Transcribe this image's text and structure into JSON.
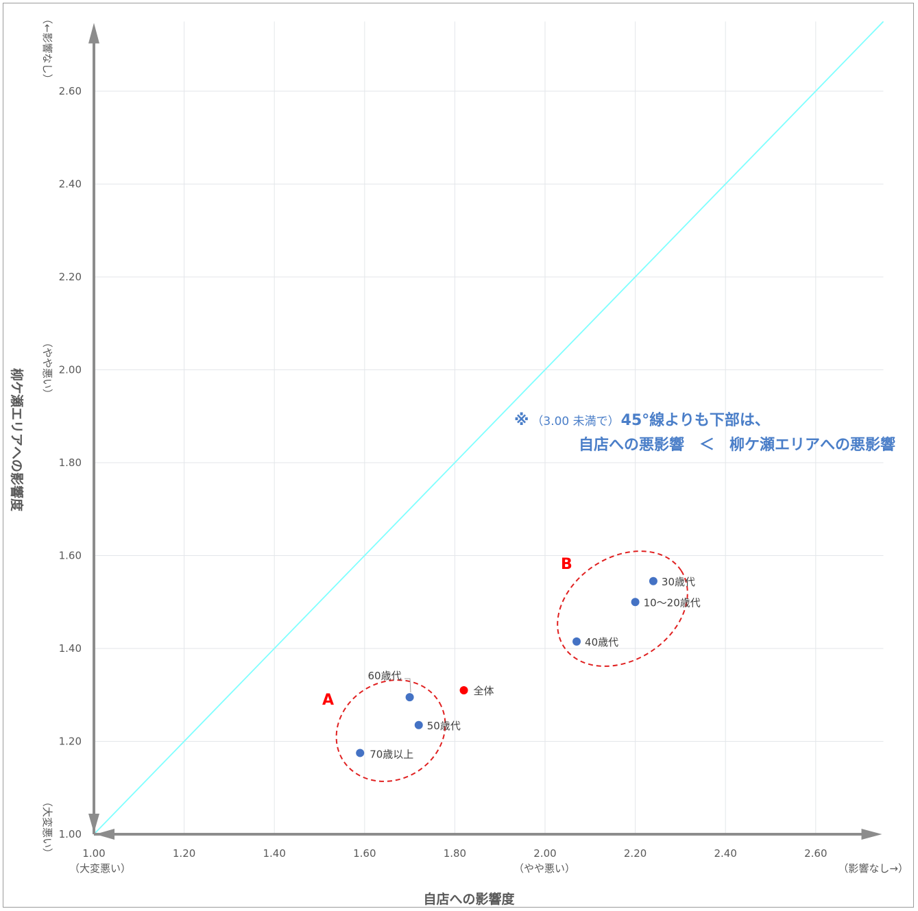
{
  "chart_data": {
    "type": "scatter",
    "xlabel": "自店への影響度",
    "ylabel": "柳ケ瀬エリアへの影響度",
    "xlim": [
      1.0,
      2.75
    ],
    "ylim": [
      1.0,
      2.75
    ],
    "x_ticks": [
      "1.00",
      "1.20",
      "1.40",
      "1.60",
      "1.80",
      "2.00",
      "2.20",
      "2.40",
      "2.60"
    ],
    "y_ticks": [
      "1.00",
      "1.20",
      "1.40",
      "1.60",
      "1.80",
      "2.00",
      "2.20",
      "2.40",
      "2.60"
    ],
    "x_sublabels": {
      "left": "（大変悪い）",
      "middle": "（やや悪い）",
      "right": "（影響なし→）"
    },
    "y_sublabels": {
      "bottom": "（大変悪い）",
      "middle": "（やや悪い）",
      "top": "（←影響なし）"
    },
    "grid": true,
    "reference_line": {
      "type": "45-degree",
      "color": "#7fffff"
    },
    "points": [
      {
        "label": "全体",
        "x": 1.82,
        "y": 1.31,
        "color": "#ff0000"
      },
      {
        "label": "60歳代",
        "x": 1.7,
        "y": 1.295,
        "color": "#4472c4"
      },
      {
        "label": "50歳代",
        "x": 1.72,
        "y": 1.235,
        "color": "#4472c4"
      },
      {
        "label": "70歳以上",
        "x": 1.59,
        "y": 1.175,
        "color": "#4472c4"
      },
      {
        "label": "30歳代",
        "x": 2.24,
        "y": 1.545,
        "color": "#4472c4"
      },
      {
        "label": "10～20歳代",
        "x": 2.2,
        "y": 1.5,
        "color": "#4472c4"
      },
      {
        "label": "40歳代",
        "x": 2.07,
        "y": 1.415,
        "color": "#4472c4"
      }
    ],
    "groups": [
      {
        "label": "A",
        "members": [
          "60歳代",
          "50歳代",
          "70歳以上"
        ]
      },
      {
        "label": "B",
        "members": [
          "30歳代",
          "10～20歳代",
          "40歳代"
        ]
      }
    ],
    "annotation": {
      "mark": "※",
      "small": "（3.00 未満で）",
      "line1": "45°線よりも下部は、",
      "line2": "自店への悪影響　＜　柳ケ瀬エリアへの悪影響"
    }
  }
}
